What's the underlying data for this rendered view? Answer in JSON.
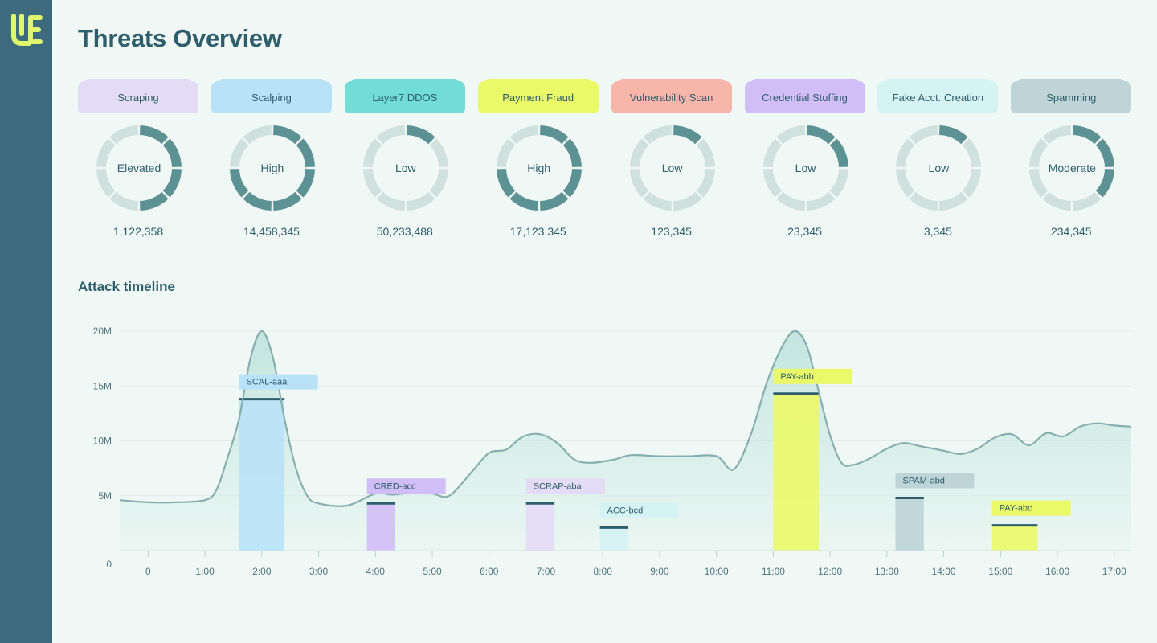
{
  "app": {
    "logo": "UE"
  },
  "page": {
    "title": "Threats Overview"
  },
  "threats": [
    {
      "name": "Scraping",
      "level": "Elevated",
      "count": "1,122,358",
      "color": "#e4dcf6",
      "filled": 4
    },
    {
      "name": "Scalping",
      "level": "High",
      "count": "14,458,345",
      "color": "#b9e2f7",
      "filled": 6
    },
    {
      "name": "Layer7 DDOS",
      "level": "Low",
      "count": "50,233,488",
      "color": "#72ddd6",
      "filled": 1
    },
    {
      "name": "Payment Fraud",
      "level": "High",
      "count": "17,123,345",
      "color": "#eaf968",
      "filled": 6
    },
    {
      "name": "Vulnerability Scan",
      "level": "Low",
      "count": "123,345",
      "color": "#f8b6ab",
      "filled": 1
    },
    {
      "name": "Credential Stuffing",
      "level": "Low",
      "count": "23,345",
      "color": "#d2bef7",
      "filled": 2
    },
    {
      "name": "Fake Acct. Creation",
      "level": "Low",
      "count": "3,345",
      "color": "#d6f3f3",
      "filled": 1
    },
    {
      "name": "Spamming",
      "level": "Moderate",
      "count": "234,345",
      "color": "#bed4d6",
      "filled": 3
    }
  ],
  "timeline": {
    "title": "Attack timeline"
  },
  "chart_data": {
    "type": "area",
    "y_ticks": [
      "20M",
      "15M",
      "10M",
      "5M",
      "0"
    ],
    "ylim": [
      0,
      20000000
    ],
    "x_ticks": [
      "0",
      "1:00",
      "2:00",
      "3:00",
      "4:00",
      "5:00",
      "6:00",
      "7:00",
      "8:00",
      "9:00",
      "10:00",
      "11:00",
      "12:00",
      "13:00",
      "14:00",
      "15:00",
      "16:00",
      "17:00"
    ],
    "x_range_hours": [
      -0.5,
      17.3
    ],
    "line_color": "#86afae",
    "series": [
      {
        "x": [
          -0.5,
          0,
          0.5,
          1,
          1.2,
          1.4,
          1.6,
          1.8,
          2,
          2.2,
          2.4,
          2.6,
          2.8,
          3,
          3.5,
          4,
          4.3,
          4.7,
          5,
          5.3,
          5.7,
          6,
          6.3,
          6.6,
          6.9,
          7.2,
          7.5,
          7.8,
          8.2,
          8.5,
          9,
          9.5,
          10,
          10.3,
          10.6,
          10.9,
          11.2,
          11.4,
          11.6,
          11.8,
          12,
          12.2,
          12.4,
          12.7,
          13,
          13.3,
          13.6,
          14,
          14.3,
          14.6,
          14.9,
          15.2,
          15.5,
          15.8,
          16.1,
          16.4,
          16.7,
          17,
          17.3
        ],
        "y": [
          4.6,
          4.4,
          4.4,
          4.6,
          5.5,
          8.5,
          12,
          17.5,
          20,
          17.5,
          12,
          7.5,
          5,
          4.3,
          4.1,
          5.2,
          5.1,
          5.3,
          5.2,
          5.0,
          7.2,
          8.9,
          9.2,
          10.4,
          10.6,
          9.8,
          8.3,
          8.0,
          8.3,
          8.7,
          8.6,
          8.6,
          8.6,
          7.4,
          10.5,
          15.5,
          19.0,
          20.0,
          18.5,
          14.5,
          10.5,
          8.0,
          7.8,
          8.4,
          9.3,
          9.8,
          9.5,
          9.1,
          8.8,
          9.3,
          10.3,
          10.6,
          9.6,
          10.7,
          10.4,
          11.3,
          11.6,
          11.4,
          11.3
        ]
      }
    ],
    "bars": [
      {
        "label": "SCAL-aaa",
        "start": 1.6,
        "end": 2.4,
        "value": 13.8,
        "color": "#b9e2f7"
      },
      {
        "label": "CRED-acc",
        "start": 3.85,
        "end": 4.35,
        "value": 4.3,
        "color": "#d2bef7"
      },
      {
        "label": "SCRAP-aba",
        "start": 6.65,
        "end": 7.15,
        "value": 4.3,
        "color": "#e4dcf6"
      },
      {
        "label": "ACC-bcd",
        "start": 7.95,
        "end": 8.45,
        "value": 2.1,
        "color": "#d6f3f3"
      },
      {
        "label": "PAY-abb",
        "start": 11.0,
        "end": 11.8,
        "value": 14.3,
        "color": "#eaf968"
      },
      {
        "label": "SPAM-abd",
        "start": 13.15,
        "end": 13.65,
        "value": 4.8,
        "color": "#bed4d6"
      },
      {
        "label": "PAY-abc",
        "start": 14.85,
        "end": 15.65,
        "value": 2.3,
        "color": "#eaf968"
      }
    ]
  }
}
